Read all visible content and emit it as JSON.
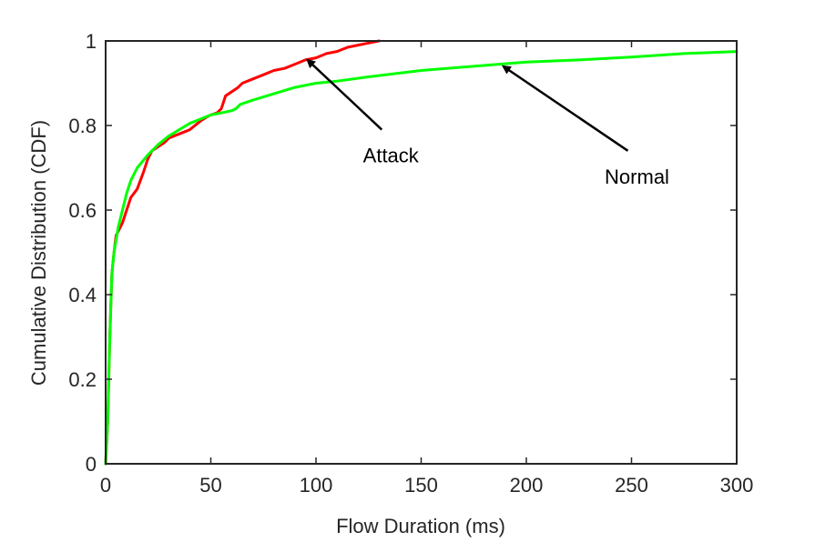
{
  "chart_data": {
    "type": "line",
    "title": "",
    "xlabel": "Flow Duration (ms)",
    "ylabel": "Cumulative Distribution (CDF)",
    "xlim": [
      0,
      300
    ],
    "ylim": [
      0,
      1
    ],
    "xticks": [
      0,
      50,
      100,
      150,
      200,
      250,
      300
    ],
    "yticks": [
      0,
      0.2,
      0.4,
      0.6,
      0.8,
      1
    ],
    "xtick_labels": [
      "0",
      "50",
      "100",
      "150",
      "200",
      "250",
      "300"
    ],
    "ytick_labels": [
      "0",
      "0.2",
      "0.4",
      "0.6",
      "0.8",
      "1"
    ],
    "grid": false,
    "series": [
      {
        "color": "#ff0000",
        "x": [
          0,
          1,
          2,
          3,
          4,
          5,
          6,
          8,
          10,
          12,
          15,
          18,
          20,
          22,
          25,
          28,
          30,
          35,
          40,
          45,
          48,
          50,
          53,
          55,
          57,
          60,
          63,
          65,
          70,
          75,
          80,
          85,
          90,
          95,
          100,
          105,
          110,
          115,
          120,
          125,
          130
        ],
        "y": [
          0,
          0.1,
          0.3,
          0.45,
          0.5,
          0.54,
          0.55,
          0.57,
          0.6,
          0.63,
          0.65,
          0.69,
          0.72,
          0.74,
          0.75,
          0.76,
          0.77,
          0.78,
          0.79,
          0.81,
          0.82,
          0.825,
          0.83,
          0.84,
          0.87,
          0.88,
          0.89,
          0.9,
          0.91,
          0.92,
          0.93,
          0.935,
          0.945,
          0.955,
          0.96,
          0.97,
          0.975,
          0.985,
          0.99,
          0.995,
          1.0
        ]
      },
      {
        "color": "#00ff00",
        "x": [
          0,
          1,
          2,
          3,
          4,
          5,
          6,
          8,
          10,
          12,
          15,
          20,
          25,
          30,
          35,
          40,
          45,
          50,
          55,
          60,
          62,
          64,
          70,
          80,
          90,
          100,
          110,
          125,
          150,
          175,
          200,
          225,
          250,
          275,
          300
        ],
        "y": [
          0,
          0.1,
          0.3,
          0.45,
          0.5,
          0.53,
          0.56,
          0.6,
          0.64,
          0.67,
          0.7,
          0.73,
          0.755,
          0.775,
          0.79,
          0.805,
          0.815,
          0.825,
          0.83,
          0.835,
          0.84,
          0.85,
          0.86,
          0.875,
          0.89,
          0.9,
          0.905,
          0.915,
          0.93,
          0.94,
          0.95,
          0.955,
          0.962,
          0.97,
          0.975
        ]
      }
    ],
    "annotations": [
      {
        "text": "Attack",
        "point": [
          96,
          0.955
        ],
        "text_at": [
          133,
          0.73
        ]
      },
      {
        "text": "Normal",
        "point": [
          189,
          0.94
        ],
        "text_at": [
          250,
          0.68
        ]
      }
    ]
  }
}
